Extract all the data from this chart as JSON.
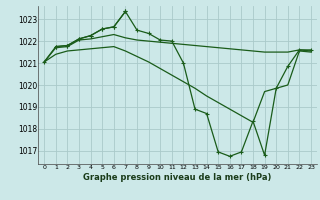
{
  "background_color": "#cce8e8",
  "grid_color": "#aacaca",
  "line_color": "#1a5c1a",
  "title": "Graphe pression niveau de la mer (hPa)",
  "xlim": [
    -0.5,
    23.5
  ],
  "ylim": [
    1016.4,
    1023.6
  ],
  "yticks": [
    1017,
    1018,
    1019,
    1020,
    1021,
    1022,
    1023
  ],
  "xticks": [
    0,
    1,
    2,
    3,
    4,
    5,
    6,
    7,
    8,
    9,
    10,
    11,
    12,
    13,
    14,
    15,
    16,
    17,
    18,
    19,
    20,
    21,
    22,
    23
  ],
  "series1_no_marker": {
    "x": [
      0,
      1,
      2,
      3,
      4,
      5,
      6,
      7,
      8,
      9,
      10,
      11,
      12,
      13,
      14,
      15,
      16,
      17,
      18,
      19,
      20,
      21,
      22,
      23
    ],
    "y": [
      1021.05,
      1021.7,
      1021.75,
      1022.05,
      1022.1,
      1022.2,
      1022.3,
      1022.15,
      1022.05,
      1022.0,
      1021.95,
      1021.9,
      1021.85,
      1021.8,
      1021.75,
      1021.7,
      1021.65,
      1021.6,
      1021.55,
      1021.5,
      1021.5,
      1021.5,
      1021.6,
      1021.55
    ]
  },
  "series2_no_marker": {
    "x": [
      0,
      1,
      2,
      3,
      4,
      5,
      6,
      7,
      8,
      9,
      10,
      11,
      12,
      13,
      14,
      15,
      16,
      17,
      18,
      19,
      20,
      21,
      22,
      23
    ],
    "y": [
      1021.05,
      1021.4,
      1021.55,
      1021.6,
      1021.65,
      1021.7,
      1021.75,
      1021.55,
      1021.3,
      1021.05,
      1020.75,
      1020.45,
      1020.15,
      1019.85,
      1019.5,
      1019.2,
      1018.9,
      1018.6,
      1018.3,
      1019.7,
      1019.85,
      1020.0,
      1021.55,
      1021.5
    ]
  },
  "series3_with_marker": {
    "x": [
      1,
      2,
      3,
      4,
      5,
      6,
      7,
      8,
      9,
      10,
      11,
      12,
      13,
      14,
      15,
      16,
      17,
      18,
      19,
      20,
      21,
      22,
      23
    ],
    "y": [
      1021.75,
      1021.8,
      1022.1,
      1022.25,
      1022.55,
      1022.65,
      1023.35,
      1022.5,
      1022.35,
      1022.05,
      1022.0,
      1021.0,
      1018.9,
      1018.7,
      1016.95,
      1016.75,
      1016.95,
      1018.35,
      1016.8,
      1019.85,
      1020.85,
      1021.6,
      1021.6
    ]
  },
  "series4_with_marker": {
    "x": [
      0,
      1,
      2,
      3,
      4,
      5,
      6,
      7
    ],
    "y": [
      1021.05,
      1021.75,
      1021.8,
      1022.1,
      1022.25,
      1022.55,
      1022.65,
      1023.35
    ]
  }
}
